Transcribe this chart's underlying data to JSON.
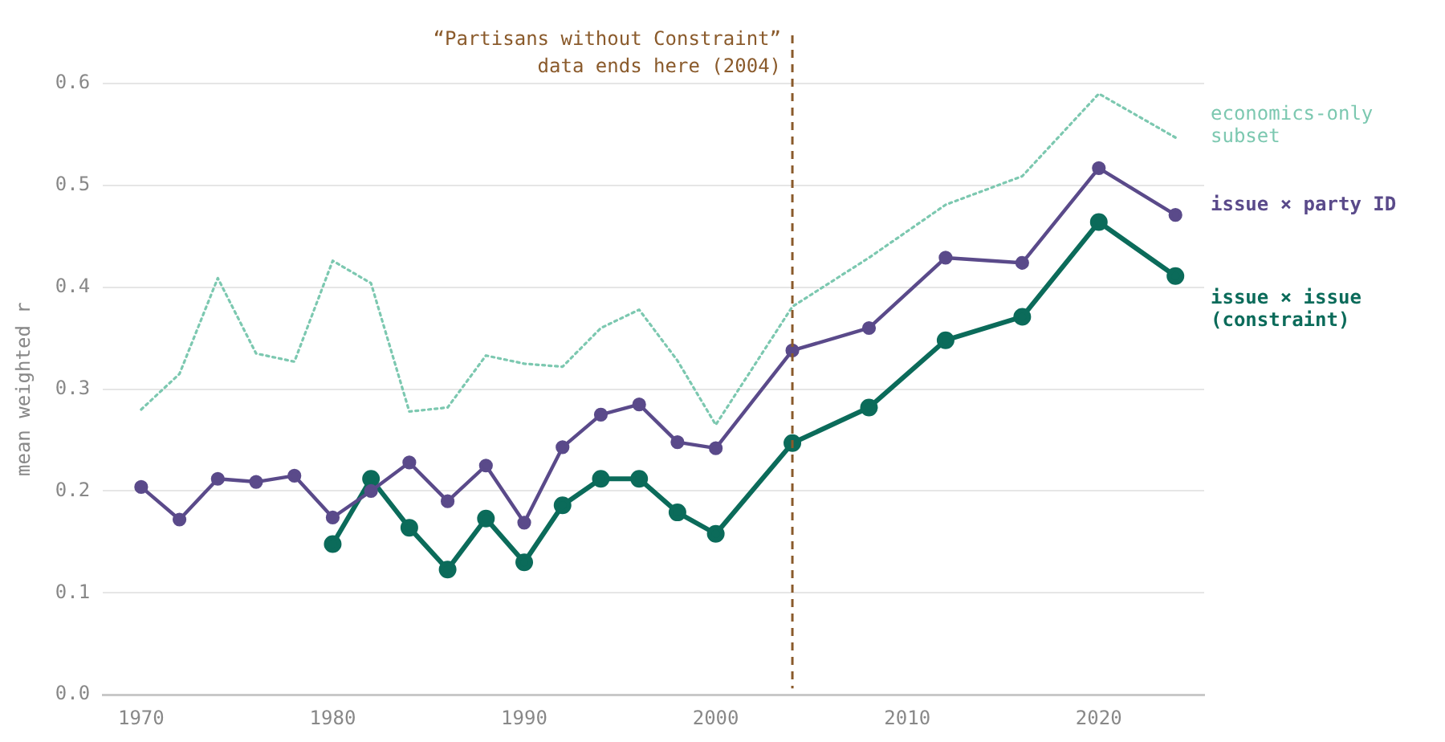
{
  "chart_data": {
    "type": "line",
    "ylabel": "mean weighted r",
    "xlim": [
      1968,
      2025.5
    ],
    "xticks": [
      1970,
      1980,
      1990,
      2000,
      2010,
      2020
    ],
    "ylim": [
      0,
      0.6
    ],
    "yticks": [
      {
        "value": 0,
        "label": "0.0"
      },
      0.1,
      0.2,
      0.3,
      0.4,
      0.5,
      0.6
    ],
    "grid": "y",
    "legend": false,
    "series": [
      {
        "name": "economics-only subset",
        "color": "#7cc8b0",
        "line_style": "dotted",
        "marker": "none",
        "x": [
          1970,
          1972,
          1974,
          1976,
          1978,
          1980,
          1982,
          1984,
          1986,
          1988,
          1990,
          1992,
          1994,
          1996,
          1998,
          2000,
          2004,
          2008,
          2012,
          2016,
          2020,
          2024
        ],
        "values": [
          0.28,
          0.315,
          0.409,
          0.335,
          0.327,
          0.426,
          0.404,
          0.278,
          0.282,
          0.333,
          0.325,
          0.322,
          0.36,
          0.378,
          0.328,
          0.265,
          0.381,
          0.429,
          0.481,
          0.509,
          0.59,
          0.547
        ]
      },
      {
        "name": "issue × party ID",
        "color": "#5a4a8a",
        "line_style": "solid",
        "marker": "circle",
        "x": [
          1970,
          1972,
          1974,
          1976,
          1978,
          1980,
          1982,
          1984,
          1986,
          1988,
          1990,
          1992,
          1994,
          1996,
          1998,
          2000,
          2004,
          2008,
          2012,
          2016,
          2020,
          2024
        ],
        "values": [
          0.204,
          0.172,
          0.212,
          0.209,
          0.215,
          0.174,
          0.2,
          0.228,
          0.19,
          0.225,
          0.169,
          0.243,
          0.275,
          0.285,
          0.248,
          0.242,
          0.338,
          0.36,
          0.429,
          0.424,
          0.517,
          0.471
        ]
      },
      {
        "name": "issue × issue (constraint)",
        "color": "#0b6b5a",
        "line_style": "solid",
        "marker": "circle",
        "x": [
          1980,
          1982,
          1984,
          1986,
          1988,
          1990,
          1992,
          1994,
          1996,
          1998,
          2000,
          2004,
          2008,
          2012,
          2016,
          2020,
          2024
        ],
        "values": [
          0.148,
          0.212,
          0.164,
          0.123,
          0.173,
          0.13,
          0.186,
          0.212,
          0.212,
          0.179,
          0.158,
          0.247,
          0.282,
          0.348,
          0.371,
          0.464,
          0.411
        ]
      }
    ],
    "ref_lines": [
      {
        "axis": "x",
        "value": 2004,
        "label": "“Partisans without Constraint” data ends here (2004)",
        "color": "#8a5a2b",
        "line_style": "dashed"
      }
    ]
  }
}
